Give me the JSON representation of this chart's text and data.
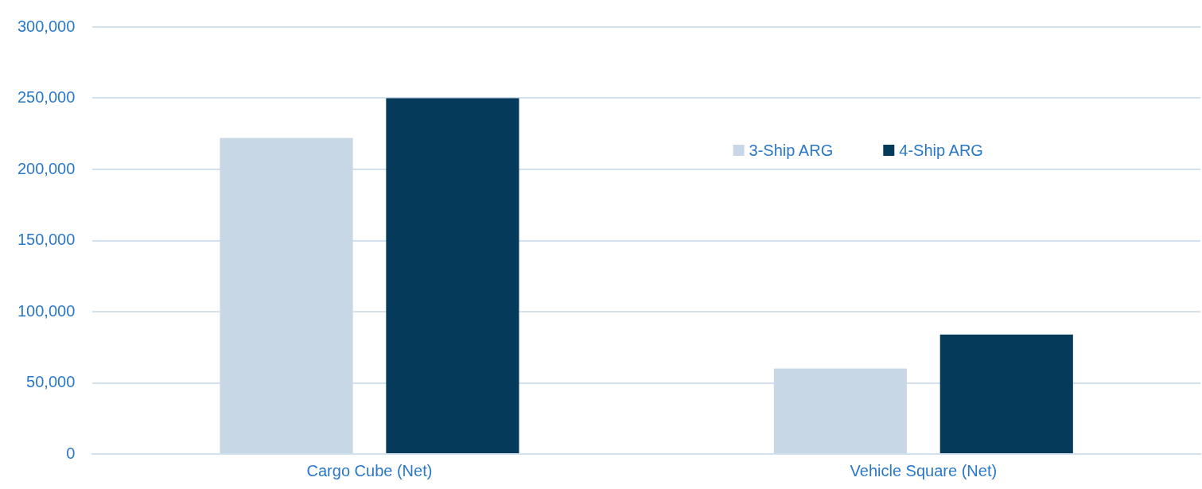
{
  "chart_data": {
    "type": "bar",
    "categories": [
      "Cargo Cube (Net)",
      "Vehicle Square (Net)"
    ],
    "series": [
      {
        "name": "3-Ship ARG",
        "color": "#c8d7e6",
        "values": [
          222000,
          60000
        ]
      },
      {
        "name": "4-Ship ARG",
        "color": "#063a5a",
        "values": [
          250000,
          84000
        ]
      }
    ],
    "ylim": [
      0,
      300000
    ],
    "yticks": [
      {
        "value": 0,
        "label": "0"
      },
      {
        "value": 50000,
        "label": "50,000"
      },
      {
        "value": 100000,
        "label": "100,000"
      },
      {
        "value": 150000,
        "label": "150,000"
      },
      {
        "value": 200000,
        "label": "200,000"
      },
      {
        "value": 250000,
        "label": "250,000"
      },
      {
        "value": 300000,
        "label": "300,000"
      }
    ],
    "grid": "y",
    "legend": "top right"
  }
}
